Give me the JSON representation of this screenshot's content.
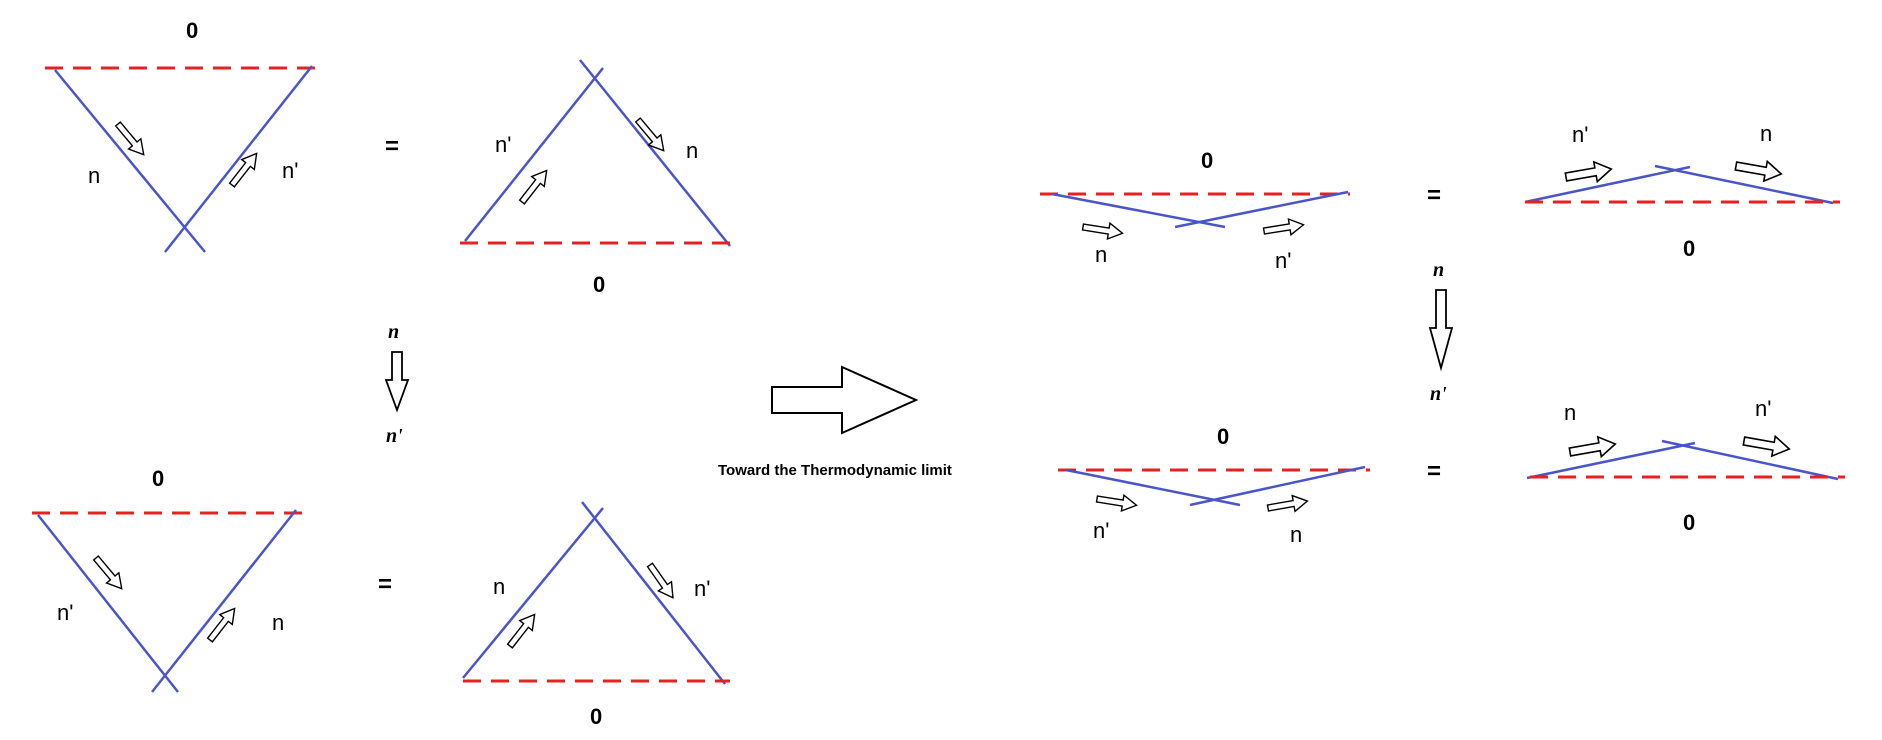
{
  "colors": {
    "line": "#4a55c8",
    "dashed": "#e82020",
    "text": "#000000"
  },
  "caption": "Toward the Thermodynamic limit",
  "equals": "=",
  "arrow_top_label": "n",
  "arrow_bottom_label": "n'",
  "left": {
    "top_row": {
      "v_zero": "0",
      "v_left_label": "n",
      "v_right_label": "n'",
      "tri_left_label": "n'",
      "tri_right_label": "n",
      "tri_zero": "0"
    },
    "bottom_row": {
      "v_zero": "0",
      "v_left_label": "n'",
      "v_right_label": "n",
      "tri_left_label": "n",
      "tri_right_label": "n'",
      "tri_zero": "0"
    }
  },
  "right": {
    "top_row": {
      "flat_v_zero": "0",
      "flat_v_left_label": "n",
      "flat_v_right_label": "n'",
      "flat_tri_left_label": "n'",
      "flat_tri_right_label": "n",
      "flat_tri_zero": "0"
    },
    "bottom_row": {
      "flat_v_zero": "0",
      "flat_v_left_label": "n'",
      "flat_v_right_label": "n",
      "flat_tri_left_label": "n",
      "flat_tri_right_label": "n'",
      "flat_tri_zero": "0"
    }
  }
}
